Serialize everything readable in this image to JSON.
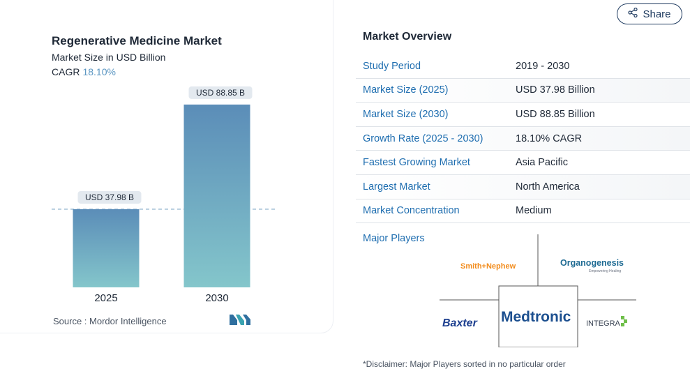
{
  "left_panel": {
    "title": "Regenerative Medicine Market",
    "subtitle": "Market Size in USD Billion",
    "cagr_label": "CAGR",
    "cagr_value": "18.10%",
    "source": "Source :  Mordor Intelligence",
    "logo_icon": "mordor-intelligence-logo-icon"
  },
  "chart_data": {
    "type": "bar",
    "title": "Regenerative Medicine Market",
    "subtitle": "Market Size in USD Billion",
    "categories": [
      "2025",
      "2030"
    ],
    "values": [
      37.98,
      88.85
    ],
    "data_labels": [
      "USD 37.98 B",
      "USD 88.85 B"
    ],
    "ylim": [
      0,
      100
    ],
    "grid": false,
    "reference_line": 37.98,
    "colors": {
      "bar_top": "#5b8db8",
      "bar_bottom": "#84c6cb",
      "label_bg": "#e3e9ef",
      "reference": "#7fa7c6"
    }
  },
  "share": {
    "label": "Share",
    "icon": "share-icon"
  },
  "overview": {
    "title": "Market Overview",
    "rows": [
      {
        "label": "Study Period",
        "value": "2019 - 2030"
      },
      {
        "label": "Market Size (2025)",
        "value": "USD 37.98 Billion"
      },
      {
        "label": "Market Size (2030)",
        "value": "USD 88.85 Billion"
      },
      {
        "label": "Growth Rate (2025 - 2030)",
        "value": "18.10% CAGR"
      },
      {
        "label": "Fastest Growing Market",
        "value": "Asia Pacific"
      },
      {
        "label": "Largest Market",
        "value": "North America"
      },
      {
        "label": "Market Concentration",
        "value": "Medium"
      }
    ]
  },
  "players": {
    "label": "Major Players",
    "names": [
      "Smith+Nephew",
      "Organogenesis",
      "Baxter",
      "Medtronic",
      "INTEGRA"
    ],
    "organogenesis_tagline": "Empowering Healing",
    "disclaimer": "*Disclaimer: Major Players sorted in no particular order"
  }
}
